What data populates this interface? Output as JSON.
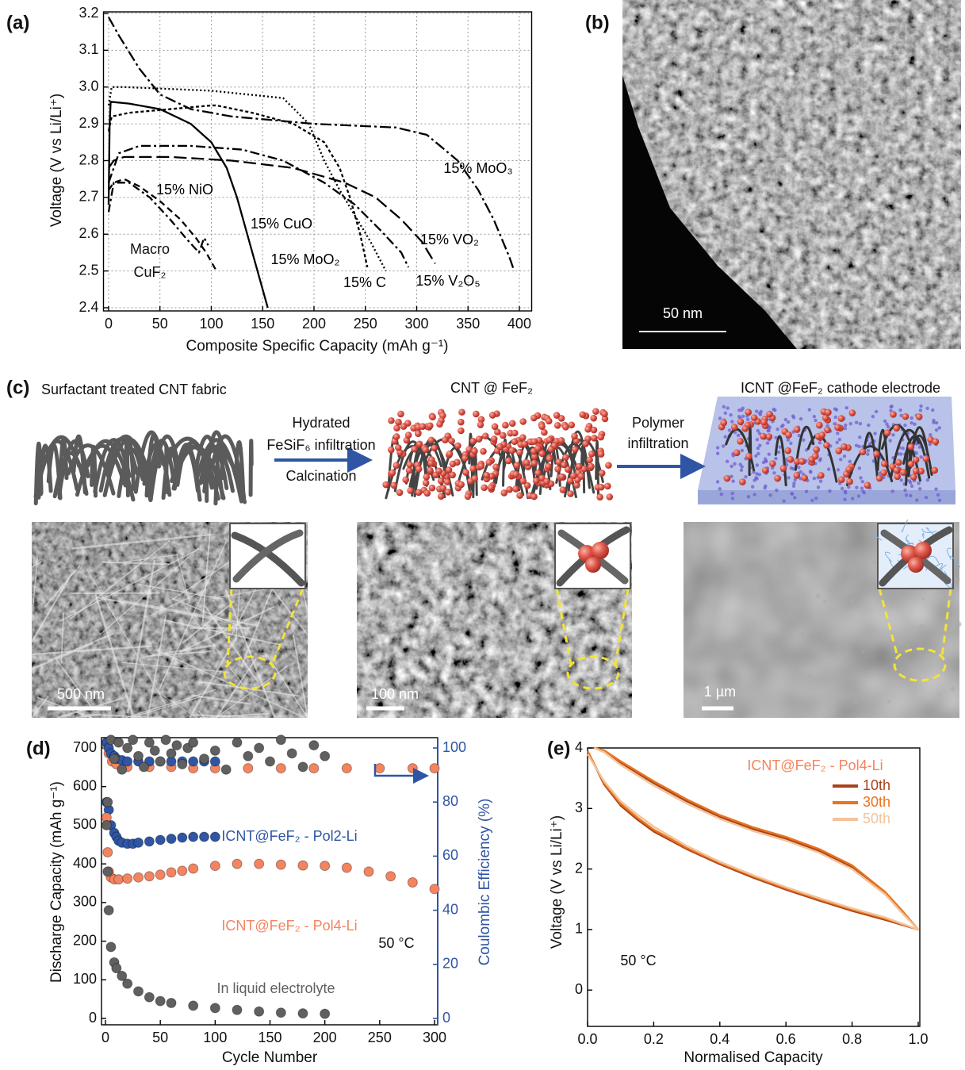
{
  "panel_labels": [
    "(a)",
    "(b)",
    "(c)",
    "(d)",
    "(e)"
  ],
  "micrograph": {
    "scale_bar": "50 nm"
  },
  "schematic": {
    "stages": [
      "Surfactant treated CNT fabric",
      "CNT @ FeF₂",
      "ICNT @FeF₂ cathode electrode"
    ],
    "steps": [
      [
        "Hydrated",
        "FeSiF₆ infiltration",
        "Calcination"
      ],
      [
        "Polymer",
        "infiltration"
      ]
    ],
    "scale_bars": [
      "500 nm",
      "100 nm",
      "1 µm"
    ]
  },
  "chart_data": [
    {
      "type": "line",
      "x_label": "Composite Specific Capacity (mAh g⁻¹)",
      "y_label": "Voltage (V vs Li/Li⁺)",
      "xlim": [
        -5,
        412
      ],
      "ylim": [
        2.4,
        3.2
      ],
      "xticks": [
        0,
        50,
        100,
        150,
        200,
        250,
        300,
        350,
        400
      ],
      "yticks": [
        2.4,
        2.5,
        2.6,
        2.7,
        2.8,
        2.9,
        {
          "value": 3,
          "label": "3.0"
        },
        3.1,
        3.2
      ],
      "grid": true,
      "series": [
        {
          "name": "15% CuO",
          "color": "#000000",
          "dash": "none",
          "x": [
            0,
            1,
            2,
            20,
            50,
            80,
            100,
            115,
            125,
            135,
            145,
            155
          ],
          "values": [
            2.68,
            2.9,
            2.96,
            2.955,
            2.94,
            2.9,
            2.85,
            2.78,
            2.7,
            2.6,
            2.5,
            2.4
          ]
        },
        {
          "name": "15% MoO₃",
          "color": "#000000",
          "dash": "14 4 3 4",
          "x": [
            0,
            10,
            30,
            50,
            80,
            120,
            200,
            280,
            310,
            340,
            360,
            375,
            390,
            395
          ],
          "values": [
            3.19,
            3.14,
            3.05,
            2.98,
            2.94,
            2.92,
            2.9,
            2.89,
            2.87,
            2.8,
            2.72,
            2.64,
            2.54,
            2.5
          ]
        },
        {
          "name": "15% NiO",
          "color": "#000000",
          "dash": "8 5",
          "x": [
            0,
            5,
            15,
            30,
            50,
            70,
            85,
            95,
            105
          ],
          "values": [
            2.72,
            2.74,
            2.75,
            2.73,
            2.69,
            2.64,
            2.59,
            2.55,
            2.5
          ]
        },
        {
          "name": "Macro CuF₂",
          "color": "#000000",
          "dash": "10 4 3 4",
          "x": [
            0,
            5,
            20,
            40,
            60,
            75,
            88,
            93,
            97
          ],
          "values": [
            2.66,
            2.74,
            2.74,
            2.7,
            2.64,
            2.59,
            2.55,
            2.59,
            2.57
          ]
        },
        {
          "name": "15% MoO₂",
          "color": "#000000",
          "dash": "4 3",
          "x": [
            0,
            3,
            20,
            60,
            100,
            105,
            140,
            180,
            210,
            225,
            235,
            245,
            252
          ],
          "values": [
            2.88,
            2.92,
            2.93,
            2.94,
            2.95,
            2.95,
            2.93,
            2.9,
            2.85,
            2.78,
            2.7,
            2.6,
            2.51
          ]
        },
        {
          "name": "15% C",
          "color": "#000000",
          "dash": "2 3",
          "x": [
            0,
            3,
            15,
            100,
            170,
            195,
            210,
            225,
            240,
            255,
            270
          ],
          "values": [
            2.95,
            3.0,
            3.0,
            2.99,
            2.97,
            2.9,
            2.8,
            2.72,
            2.65,
            2.58,
            2.5
          ]
        },
        {
          "name": "15% VO₂",
          "color": "#000000",
          "dash": "16 6",
          "x": [
            0,
            5,
            15,
            60,
            120,
            180,
            230,
            260,
            285,
            305,
            318
          ],
          "values": [
            2.78,
            2.8,
            2.81,
            2.81,
            2.8,
            2.78,
            2.74,
            2.7,
            2.64,
            2.58,
            2.52
          ]
        },
        {
          "name": "15% V₂O₅",
          "color": "#000000",
          "dash": "12 4 3 4",
          "x": [
            0,
            10,
            30,
            80,
            130,
            170,
            210,
            240,
            265,
            285,
            292
          ],
          "values": [
            2.74,
            2.82,
            2.84,
            2.84,
            2.83,
            2.8,
            2.74,
            2.68,
            2.61,
            2.55,
            2.51
          ]
        }
      ]
    },
    {
      "type": "scatter",
      "x_label": "Cycle Number",
      "y_label": "Discharge Capacity (mAh g⁻¹)",
      "y2_label": "Coulombic Efficiency (%)",
      "y2_color": "#2f55a4",
      "xlim": [
        0,
        300
      ],
      "ylim": [
        0,
        700
      ],
      "y2lim": [
        0,
        100
      ],
      "xticks": [
        0,
        50,
        100,
        150,
        200,
        250,
        300
      ],
      "yticks": [
        0,
        100,
        200,
        300,
        400,
        500,
        600,
        700
      ],
      "y2ticks": [
        0,
        20,
        40,
        60,
        80,
        100
      ],
      "annotation": "50 °C",
      "series": [
        {
          "name": "ICNT@FeF₂ - Pol2-Li",
          "color": "#2f55a4",
          "x": [
            1,
            3,
            5,
            8,
            10,
            12,
            15,
            20,
            25,
            30,
            40,
            50,
            60,
            70,
            80,
            90,
            100
          ],
          "values": [
            560,
            540,
            500,
            480,
            470,
            460,
            455,
            452,
            452,
            455,
            458,
            462,
            465,
            468,
            470,
            470,
            470
          ]
        },
        {
          "name": "ICNT@FeF₂ - Pol4-Li",
          "color": "#f4845f",
          "x": [
            1,
            2,
            3,
            5,
            8,
            12,
            20,
            30,
            40,
            50,
            60,
            70,
            80,
            100,
            120,
            140,
            160,
            180,
            200,
            220,
            240,
            260,
            280,
            300
          ],
          "values": [
            520,
            430,
            380,
            365,
            360,
            360,
            362,
            365,
            368,
            372,
            378,
            382,
            388,
            395,
            400,
            400,
            398,
            396,
            395,
            390,
            380,
            368,
            352,
            335
          ]
        },
        {
          "name": "In liquid electrolyte",
          "color": "#606060",
          "x": [
            1,
            2,
            3,
            5,
            8,
            10,
            15,
            20,
            30,
            40,
            50,
            60,
            80,
            100,
            120,
            140,
            160,
            180,
            200
          ],
          "values": [
            500,
            380,
            280,
            185,
            145,
            130,
            110,
            90,
            70,
            55,
            45,
            40,
            33,
            27,
            22,
            18,
            15,
            13,
            12
          ]
        },
        {
          "color": "#f4845f",
          "axis": "y2",
          "x": [
            1,
            3,
            6,
            10,
            20,
            40,
            60,
            80,
            100,
            130,
            160,
            190,
            220,
            250,
            280,
            300
          ],
          "values": [
            101,
            98,
            95,
            94,
            93,
            93,
            93,
            92.5,
            92.5,
            92.5,
            92.5,
            92.5,
            92.5,
            92.5,
            92.5,
            92.5
          ]
        },
        {
          "color": "#2f55a4",
          "axis": "y2",
          "x": [
            1,
            3,
            5,
            8,
            10,
            15,
            20,
            30,
            40,
            50,
            60,
            70,
            80,
            90,
            100
          ],
          "values": [
            102,
            100,
            98,
            97,
            96,
            95.5,
            95,
            95,
            95,
            95,
            95,
            95,
            95,
            95,
            95
          ]
        },
        {
          "color": "#606060",
          "axis": "y2",
          "x": [
            2,
            5,
            8,
            12,
            15,
            20,
            25,
            30,
            35,
            40,
            45,
            50,
            55,
            60,
            65,
            70,
            75,
            80,
            90,
            100,
            110,
            120,
            130,
            140,
            150,
            160,
            170,
            180,
            190,
            200
          ],
          "values": [
            80,
            103,
            96,
            102,
            92,
            100,
            103,
            97,
            93,
            102,
            99,
            95,
            103,
            98,
            101,
            94,
            100,
            102,
            96,
            99,
            92,
            102,
            97,
            100,
            95,
            103,
            98,
            93,
            101,
            97
          ]
        }
      ]
    },
    {
      "type": "line",
      "x_label": "Normalised Capacity",
      "y_label": "Voltage (V vs Li/Li⁺)",
      "xlim": [
        0,
        1
      ],
      "ylim": [
        -0.6,
        4
      ],
      "xticks": [
        {
          "value": 0,
          "label": "0.0"
        },
        0.2,
        0.4,
        0.6,
        0.8,
        {
          "value": 1,
          "label": "1.0"
        }
      ],
      "yticks": [
        0,
        1,
        2,
        3,
        4
      ],
      "legend": "upper right",
      "legend_title": "ICNT@FeF₂ - Pol4-Li",
      "annotation": "50 °C",
      "series": [
        {
          "name": "10th",
          "color": "#a8431c",
          "x": [
            0,
            0.05,
            0.1,
            0.15,
            0.2,
            0.3,
            0.4,
            0.5,
            0.6,
            0.7,
            0.8,
            0.9,
            1.0,
            0.95,
            0.9,
            0.8,
            0.7,
            0.6,
            0.5,
            0.4,
            0.3,
            0.2,
            0.1,
            0.05,
            0.02
          ],
          "values": [
            3.95,
            3.4,
            3.05,
            2.82,
            2.62,
            2.33,
            2.08,
            1.86,
            1.66,
            1.48,
            1.31,
            1.16,
            1.0,
            1.3,
            1.6,
            2.03,
            2.3,
            2.5,
            2.66,
            2.86,
            3.12,
            3.42,
            3.76,
            3.95,
            4.0
          ]
        },
        {
          "name": "30th",
          "color": "#e8741e",
          "x": [
            0,
            0.05,
            0.1,
            0.15,
            0.2,
            0.3,
            0.4,
            0.5,
            0.6,
            0.7,
            0.8,
            0.9,
            1.0,
            0.95,
            0.9,
            0.8,
            0.7,
            0.6,
            0.5,
            0.4,
            0.3,
            0.2,
            0.1,
            0.05,
            0.02
          ],
          "values": [
            3.95,
            3.42,
            3.08,
            2.85,
            2.65,
            2.35,
            2.1,
            1.88,
            1.68,
            1.5,
            1.33,
            1.18,
            1.0,
            1.32,
            1.62,
            2.06,
            2.33,
            2.53,
            2.69,
            2.89,
            3.15,
            3.45,
            3.78,
            3.96,
            4.0
          ]
        },
        {
          "name": "50th",
          "color": "#f2c49b",
          "x": [
            0,
            0.05,
            0.1,
            0.15,
            0.2,
            0.3,
            0.4,
            0.5,
            0.6,
            0.7,
            0.8,
            0.9,
            1.0,
            0.95,
            0.9,
            0.8,
            0.7,
            0.6,
            0.5,
            0.4,
            0.3,
            0.2,
            0.1,
            0.05,
            0.02
          ],
          "values": [
            3.9,
            3.45,
            3.12,
            2.9,
            2.7,
            2.38,
            2.12,
            1.9,
            1.7,
            1.52,
            1.35,
            1.2,
            1.0,
            1.28,
            1.58,
            2.0,
            2.27,
            2.47,
            2.63,
            2.83,
            3.08,
            3.38,
            3.72,
            3.93,
            4.0
          ]
        }
      ]
    }
  ]
}
